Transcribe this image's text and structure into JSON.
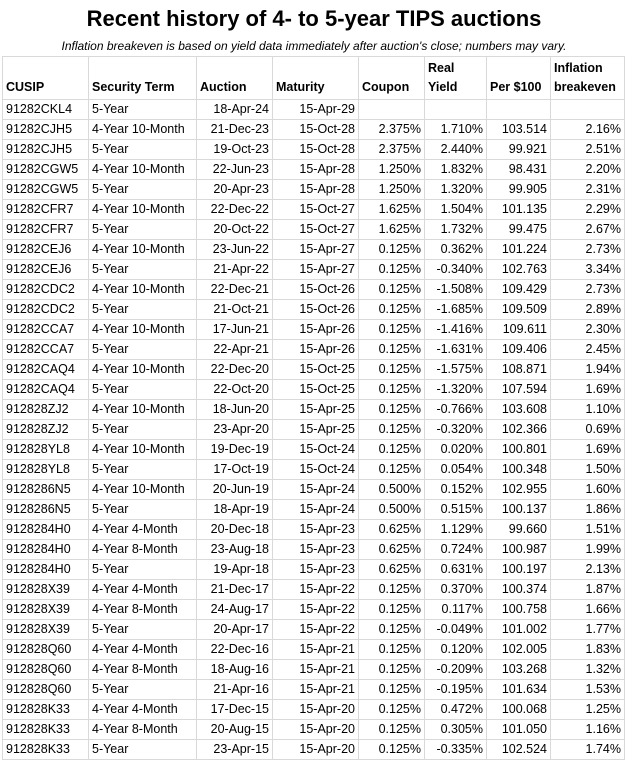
{
  "header": {
    "title": "Recent history of 4- to 5-year TIPS auctions",
    "subtitle": "Inflation breakeven is based on yield data immediately after auction's close; numbers may vary."
  },
  "table": {
    "columns": [
      "CUSIP",
      "Security Term",
      "Auction",
      "Maturity",
      "Coupon",
      "Real Yield",
      "Per $100",
      "Inflation breakeven"
    ],
    "rows": [
      [
        "91282CKL4",
        "5-Year",
        "18-Apr-24",
        "15-Apr-29"
      ],
      [
        "91282CJH5",
        "4-Year 10-Month",
        "21-Dec-23",
        "15-Oct-28",
        "2.375%",
        "1.710%",
        "103.514",
        "2.16%"
      ],
      [
        "91282CJH5",
        "5-Year",
        "19-Oct-23",
        "15-Oct-28",
        "2.375%",
        "2.440%",
        "99.921",
        "2.51%"
      ],
      [
        "91282CGW5",
        "4-Year 10-Month",
        "22-Jun-23",
        "15-Apr-28",
        "1.250%",
        "1.832%",
        "98.431",
        "2.20%"
      ],
      [
        "91282CGW5",
        "5-Year",
        "20-Apr-23",
        "15-Apr-28",
        "1.250%",
        "1.320%",
        "99.905",
        "2.31%"
      ],
      [
        "91282CFR7",
        "4-Year 10-Month",
        "22-Dec-22",
        "15-Oct-27",
        "1.625%",
        "1.504%",
        "101.135",
        "2.29%"
      ],
      [
        "91282CFR7",
        "5-Year",
        "20-Oct-22",
        "15-Oct-27",
        "1.625%",
        "1.732%",
        "99.475",
        "2.67%"
      ],
      [
        "91282CEJ6",
        "4-Year 10-Month",
        "23-Jun-22",
        "15-Apr-27",
        "0.125%",
        "0.362%",
        "101.224",
        "2.73%"
      ],
      [
        "91282CEJ6",
        "5-Year",
        "21-Apr-22",
        "15-Apr-27",
        "0.125%",
        "-0.340%",
        "102.763",
        "3.34%"
      ],
      [
        "91282CDC2",
        "4-Year 10-Month",
        "22-Dec-21",
        "15-Oct-26",
        "0.125%",
        "-1.508%",
        "109.429",
        "2.73%"
      ],
      [
        "91282CDC2",
        "5-Year",
        "21-Oct-21",
        "15-Oct-26",
        "0.125%",
        "-1.685%",
        "109.509",
        "2.89%"
      ],
      [
        "91282CCA7",
        "4-Year 10-Month",
        "17-Jun-21",
        "15-Apr-26",
        "0.125%",
        "-1.416%",
        "109.611",
        "2.30%"
      ],
      [
        "91282CCA7",
        "5-Year",
        "22-Apr-21",
        "15-Apr-26",
        "0.125%",
        "-1.631%",
        "109.406",
        "2.45%"
      ],
      [
        "91282CAQ4",
        "4-Year 10-Month",
        "22-Dec-20",
        "15-Oct-25",
        "0.125%",
        "-1.575%",
        "108.871",
        "1.94%"
      ],
      [
        "91282CAQ4",
        "5-Year",
        "22-Oct-20",
        "15-Oct-25",
        "0.125%",
        "-1.320%",
        "107.594",
        "1.69%"
      ],
      [
        "912828ZJ2",
        "4-Year 10-Month",
        "18-Jun-20",
        "15-Apr-25",
        "0.125%",
        "-0.766%",
        "103.608",
        "1.10%"
      ],
      [
        "912828ZJ2",
        "5-Year",
        "23-Apr-20",
        "15-Apr-25",
        "0.125%",
        "-0.320%",
        "102.366",
        "0.69%"
      ],
      [
        "912828YL8",
        "4-Year 10-Month",
        "19-Dec-19",
        "15-Oct-24",
        "0.125%",
        "0.020%",
        "100.801",
        "1.69%"
      ],
      [
        "912828YL8",
        "5-Year",
        "17-Oct-19",
        "15-Oct-24",
        "0.125%",
        "0.054%",
        "100.348",
        "1.50%"
      ],
      [
        "9128286N5",
        "4-Year 10-Month",
        "20-Jun-19",
        "15-Apr-24",
        "0.500%",
        "0.152%",
        "102.955",
        "1.60%"
      ],
      [
        "9128286N5",
        "5-Year",
        "18-Apr-19",
        "15-Apr-24",
        "0.500%",
        "0.515%",
        "100.137",
        "1.86%"
      ],
      [
        "9128284H0",
        "4-Year 4-Month",
        "20-Dec-18",
        "15-Apr-23",
        "0.625%",
        "1.129%",
        "99.660",
        "1.51%"
      ],
      [
        "9128284H0",
        "4-Year 8-Month",
        "23-Aug-18",
        "15-Apr-23",
        "0.625%",
        "0.724%",
        "100.987",
        "1.99%"
      ],
      [
        "9128284H0",
        "5-Year",
        "19-Apr-18",
        "15-Apr-23",
        "0.625%",
        "0.631%",
        "100.197",
        "2.13%"
      ],
      [
        "912828X39",
        "4-Year 4-Month",
        "21-Dec-17",
        "15-Apr-22",
        "0.125%",
        "0.370%",
        "100.374",
        "1.87%"
      ],
      [
        "912828X39",
        "4-Year 8-Month",
        "24-Aug-17",
        "15-Apr-22",
        "0.125%",
        "0.117%",
        "100.758",
        "1.66%"
      ],
      [
        "912828X39",
        "5-Year",
        "20-Apr-17",
        "15-Apr-22",
        "0.125%",
        "-0.049%",
        "101.002",
        "1.77%"
      ],
      [
        "912828Q60",
        "4-Year 4-Month",
        "22-Dec-16",
        "15-Apr-21",
        "0.125%",
        "0.120%",
        "102.005",
        "1.83%"
      ],
      [
        "912828Q60",
        "4-Year 8-Month",
        "18-Aug-16",
        "15-Apr-21",
        "0.125%",
        "-0.209%",
        "103.268",
        "1.32%"
      ],
      [
        "912828Q60",
        "5-Year",
        "21-Apr-16",
        "15-Apr-21",
        "0.125%",
        "-0.195%",
        "101.634",
        "1.53%"
      ],
      [
        "912828K33",
        "4-Year 4-Month",
        "17-Dec-15",
        "15-Apr-20",
        "0.125%",
        "0.472%",
        "100.068",
        "1.25%"
      ],
      [
        "912828K33",
        "4-Year 8-Month",
        "20-Aug-15",
        "15-Apr-20",
        "0.125%",
        "0.305%",
        "101.050",
        "1.16%"
      ],
      [
        "912828K33",
        "5-Year",
        "23-Apr-15",
        "15-Apr-20",
        "0.125%",
        "-0.335%",
        "102.524",
        "1.74%"
      ]
    ]
  }
}
